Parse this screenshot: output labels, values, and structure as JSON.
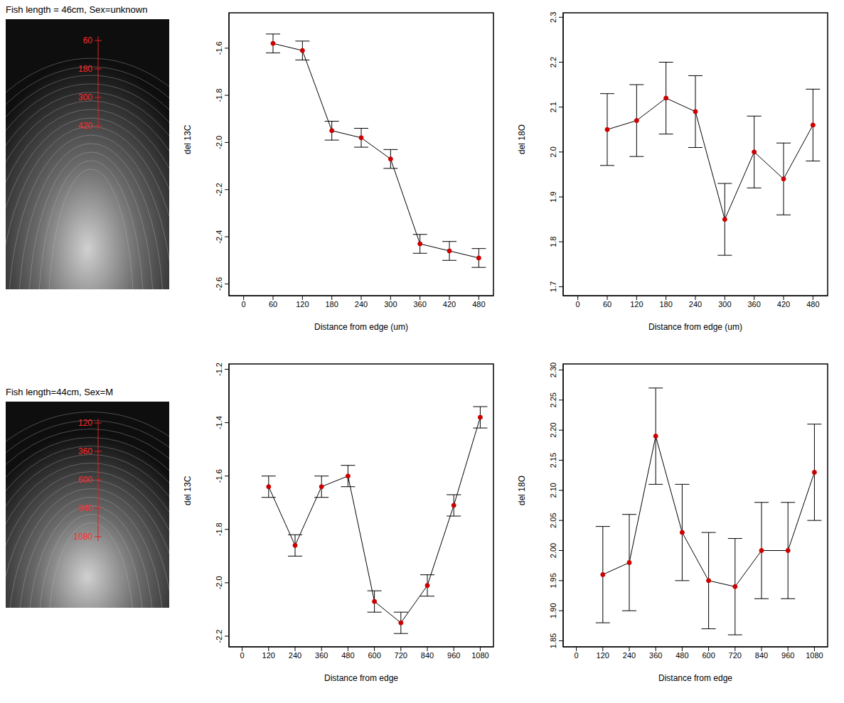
{
  "images": [
    {
      "caption": "Fish length = 46cm, Sex=unknown",
      "marks": [
        "60",
        "180",
        "300",
        "420"
      ]
    },
    {
      "caption": "Fish length=44cm, Sex=M",
      "marks": [
        "120",
        "360",
        "600",
        "840",
        "1080"
      ]
    }
  ],
  "chart_data": [
    {
      "type": "line",
      "x_label": "Distance from edge (um)",
      "y_label": "del 13C",
      "x": [
        60,
        120,
        180,
        240,
        300,
        360,
        420,
        480
      ],
      "values": [
        -1.58,
        -1.61,
        -1.95,
        -1.98,
        -2.07,
        -2.43,
        -2.46,
        -2.49
      ],
      "errors": [
        0.04,
        0.04,
        0.04,
        0.04,
        0.04,
        0.04,
        0.04,
        0.04
      ],
      "xlim": [
        -30,
        510
      ],
      "xticks": [
        0,
        60,
        120,
        180,
        240,
        300,
        360,
        420,
        480
      ],
      "ylim": [
        -2.65,
        -1.45
      ],
      "yticks": [
        -2.6,
        -2.4,
        -2.2,
        {
          "value": -2,
          "label": "-2.0"
        },
        -1.8,
        -1.6
      ],
      "color": "#000000",
      "marker": "circle",
      "grid": false
    },
    {
      "type": "line",
      "x_label": "Distance from edge (um)",
      "y_label": "del 18O",
      "x": [
        60,
        120,
        180,
        240,
        300,
        360,
        420,
        480
      ],
      "values": [
        2.05,
        2.07,
        2.12,
        2.09,
        1.85,
        2.0,
        1.94,
        2.06
      ],
      "errors": [
        0.08,
        0.08,
        0.08,
        0.08,
        0.08,
        0.08,
        0.08,
        0.08
      ],
      "xlim": [
        -30,
        510
      ],
      "xticks": [
        0,
        60,
        120,
        180,
        240,
        300,
        360,
        420,
        480
      ],
      "ylim": [
        1.68,
        2.31
      ],
      "yticks": [
        1.7,
        1.8,
        1.9,
        {
          "value": 2,
          "label": "2.0"
        },
        2.1,
        2.2,
        2.3
      ],
      "color": "#000000",
      "marker": "circle",
      "grid": false
    },
    {
      "type": "line",
      "x_label": "Distance from edge",
      "y_label": "del 13C",
      "x": [
        120,
        240,
        360,
        480,
        600,
        720,
        840,
        960,
        1080
      ],
      "values": [
        -1.64,
        -1.86,
        -1.64,
        -1.6,
        -2.07,
        -2.15,
        -2.01,
        -1.71,
        -1.38
      ],
      "errors": [
        0.04,
        0.04,
        0.04,
        0.04,
        0.04,
        0.04,
        0.04,
        0.04,
        0.04
      ],
      "xlim": [
        -60,
        1140
      ],
      "xticks": [
        0,
        120,
        240,
        360,
        480,
        600,
        720,
        840,
        960,
        1080
      ],
      "ylim": [
        -2.24,
        -1.18
      ],
      "yticks": [
        -2.2,
        {
          "value": -2,
          "label": "-2.0"
        },
        -1.8,
        -1.6,
        -1.4,
        -1.2
      ],
      "color": "#000000",
      "marker": "circle",
      "grid": false
    },
    {
      "type": "line",
      "x_label": "Distance from edge",
      "y_label": "del 18O",
      "x": [
        120,
        240,
        360,
        480,
        600,
        720,
        840,
        960,
        1080
      ],
      "values": [
        1.96,
        1.98,
        2.19,
        2.03,
        1.95,
        1.94,
        2.0,
        2.0,
        2.13
      ],
      "errors": [
        0.08,
        0.08,
        0.08,
        0.08,
        0.08,
        0.08,
        0.08,
        0.08,
        0.08
      ],
      "xlim": [
        -60,
        1140
      ],
      "xticks": [
        0,
        120,
        240,
        360,
        480,
        600,
        720,
        840,
        960,
        1080
      ],
      "ylim": [
        1.84,
        2.31
      ],
      "yticks": [
        1.85,
        {
          "value": 1.9,
          "label": "1.90"
        },
        1.95,
        {
          "value": 2,
          "label": "2.00"
        },
        2.05,
        {
          "value": 2.1,
          "label": "2.10"
        },
        2.15,
        {
          "value": 2.2,
          "label": "2.20"
        },
        2.25,
        {
          "value": 2.3,
          "label": "2.30"
        }
      ],
      "color": "#000000",
      "marker": "circle",
      "grid": false
    }
  ]
}
